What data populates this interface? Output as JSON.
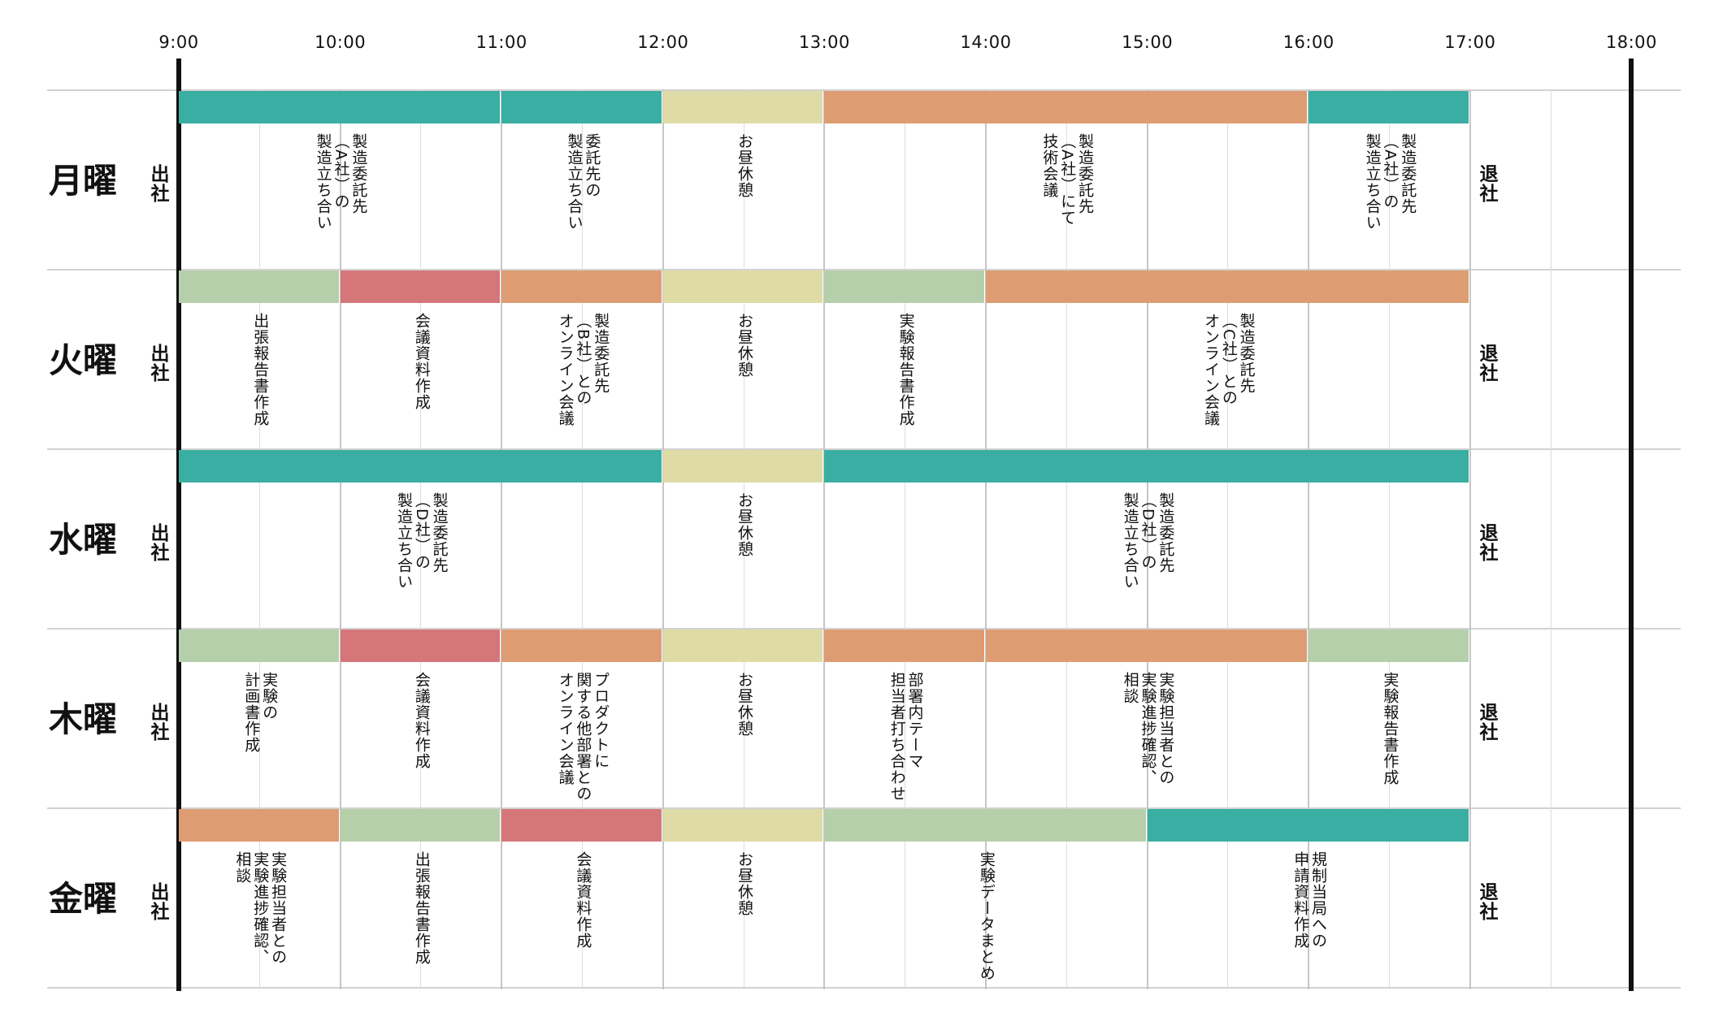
{
  "colors": {
    "teal": "#3aaea3",
    "sage": "#b6cfab",
    "khaki": "#dedba6",
    "orange": "#de9c72",
    "red": "#d57679"
  },
  "hours": [
    "9:00",
    "10:00",
    "11:00",
    "12:00",
    "13:00",
    "14:00",
    "15:00",
    "16:00",
    "17:00",
    "18:00"
  ],
  "arrive": "出社",
  "leave": "退社",
  "days": [
    {
      "name": "月曜",
      "events": [
        {
          "start": "9:00",
          "end": "11:00",
          "color": "teal",
          "label": "製造委託先\n（A社）の\n製造立ち合い"
        },
        {
          "start": "11:00",
          "end": "12:00",
          "color": "teal",
          "label": "委託先の\n製造立ち合い"
        },
        {
          "start": "12:00",
          "end": "13:00",
          "color": "khaki",
          "label": "お昼休憩"
        },
        {
          "start": "13:00",
          "end": "16:00",
          "color": "orange",
          "label": "製造委託先\n（A社）にて\n技術会議"
        },
        {
          "start": "16:00",
          "end": "17:00",
          "color": "teal",
          "label": "製造委託先\n（A社）の\n製造立ち合い"
        }
      ]
    },
    {
      "name": "火曜",
      "events": [
        {
          "start": "9:00",
          "end": "10:00",
          "color": "sage",
          "label": "出張報告書作成"
        },
        {
          "start": "10:00",
          "end": "11:00",
          "color": "red",
          "label": "会議資料作成"
        },
        {
          "start": "11:00",
          "end": "12:00",
          "color": "orange",
          "label": "製造委託先\n（B社）との\nオンライン会議"
        },
        {
          "start": "12:00",
          "end": "13:00",
          "color": "khaki",
          "label": "お昼休憩"
        },
        {
          "start": "13:00",
          "end": "14:00",
          "color": "sage",
          "label": "実験報告書作成"
        },
        {
          "start": "14:00",
          "end": "17:00",
          "color": "orange",
          "label": "製造委託先\n（C社）との\nオンライン会議"
        }
      ]
    },
    {
      "name": "水曜",
      "events": [
        {
          "start": "9:00",
          "end": "12:00",
          "color": "teal",
          "label": "製造委託先\n（D社）の\n製造立ち合い"
        },
        {
          "start": "12:00",
          "end": "13:00",
          "color": "khaki",
          "label": "お昼休憩"
        },
        {
          "start": "13:00",
          "end": "17:00",
          "color": "teal",
          "label": "製造委託先\n（D社）の\n製造立ち合い"
        }
      ]
    },
    {
      "name": "木曜",
      "events": [
        {
          "start": "9:00",
          "end": "10:00",
          "color": "sage",
          "label": "実験の\n計画書作成"
        },
        {
          "start": "10:00",
          "end": "11:00",
          "color": "red",
          "label": "会議資料作成"
        },
        {
          "start": "11:00",
          "end": "12:00",
          "color": "orange",
          "label": "プロダクトに\n関する他部署との\nオンライン会議"
        },
        {
          "start": "12:00",
          "end": "13:00",
          "color": "khaki",
          "label": "お昼休憩"
        },
        {
          "start": "13:00",
          "end": "14:00",
          "color": "orange",
          "label": "部署内テーマ\n担当者打ち合わせ"
        },
        {
          "start": "14:00",
          "end": "16:00",
          "color": "orange",
          "label": "実験担当者との\n実験進捗確認、\n相談"
        },
        {
          "start": "16:00",
          "end": "17:00",
          "color": "sage",
          "label": "実験報告書作成"
        }
      ]
    },
    {
      "name": "金曜",
      "events": [
        {
          "start": "9:00",
          "end": "10:00",
          "color": "orange",
          "label": "実験担当者との\n実験進捗確認、\n相談"
        },
        {
          "start": "10:00",
          "end": "11:00",
          "color": "sage",
          "label": "出張報告書作成"
        },
        {
          "start": "11:00",
          "end": "12:00",
          "color": "red",
          "label": "会議資料作成"
        },
        {
          "start": "12:00",
          "end": "13:00",
          "color": "khaki",
          "label": "お昼休憩"
        },
        {
          "start": "13:00",
          "end": "15:00",
          "color": "sage",
          "label": "実験データまとめ"
        },
        {
          "start": "15:00",
          "end": "17:00",
          "color": "teal",
          "label": "規制当局への\n申請資料作成"
        }
      ]
    }
  ]
}
